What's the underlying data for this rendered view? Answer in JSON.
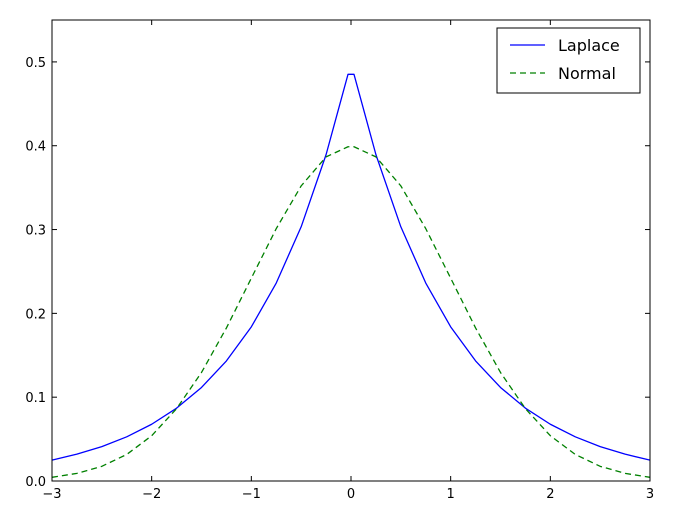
{
  "chart_data": {
    "type": "line",
    "title": "",
    "xlabel": "",
    "ylabel": "",
    "xlim": [
      -3,
      3
    ],
    "ylim": [
      0,
      0.55
    ],
    "xticks": [
      -3,
      -2,
      -1,
      0,
      1,
      2,
      3
    ],
    "xtick_labels": [
      "−3",
      "−2",
      "−1",
      "0",
      "1",
      "2",
      "3"
    ],
    "yticks": [
      0.0,
      0.1,
      0.2,
      0.3,
      0.4,
      0.5
    ],
    "ytick_labels": [
      "0.0",
      "0.1",
      "0.2",
      "0.3",
      "0.4",
      "0.5"
    ],
    "grid": false,
    "legend_position": "top-right",
    "x": [
      -3.0,
      -2.75,
      -2.5,
      -2.25,
      -2.0,
      -1.75,
      -1.5,
      -1.25,
      -1.0,
      -0.75,
      -0.5,
      -0.25,
      -0.03,
      0.03,
      0.25,
      0.5,
      0.75,
      1.0,
      1.25,
      1.5,
      1.75,
      2.0,
      2.25,
      2.5,
      2.75,
      3.0
    ],
    "series": [
      {
        "name": "Laplace",
        "color": "#0000ff",
        "style": "solid",
        "values": [
          0.0249,
          0.032,
          0.041,
          0.0527,
          0.0677,
          0.0869,
          0.1116,
          0.1433,
          0.1839,
          0.2362,
          0.3033,
          0.3894,
          0.4852,
          0.4852,
          0.3894,
          0.3033,
          0.2362,
          0.1839,
          0.1433,
          0.1116,
          0.0869,
          0.0677,
          0.0527,
          0.041,
          0.032,
          0.0249
        ]
      },
      {
        "name": "Normal",
        "color": "#008000",
        "style": "dashed",
        "values": [
          0.0044,
          0.0091,
          0.0175,
          0.0317,
          0.054,
          0.0863,
          0.1295,
          0.1826,
          0.242,
          0.3011,
          0.3521,
          0.3867,
          0.3988,
          0.3988,
          0.3867,
          0.3521,
          0.3011,
          0.242,
          0.1826,
          0.1295,
          0.0863,
          0.054,
          0.0317,
          0.0175,
          0.0091,
          0.0044
        ]
      }
    ]
  }
}
